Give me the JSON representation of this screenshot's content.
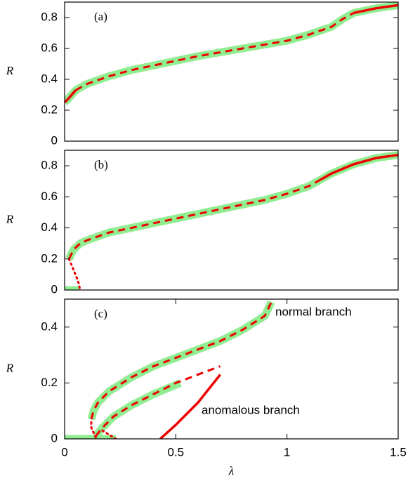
{
  "chart_data": [
    {
      "type": "line",
      "label": "(a)",
      "y_label": "R",
      "xlim": [
        0,
        1.5
      ],
      "ylim": [
        0,
        0.9
      ],
      "yticks": [
        0,
        0.2,
        0.4,
        0.6,
        0.8
      ],
      "series": [
        {
          "color": "#90ee90",
          "style": "solid",
          "width": 11,
          "x": [
            0,
            0.02,
            0.05,
            0.1,
            0.2,
            0.3,
            0.4,
            0.5,
            0.6,
            0.7,
            0.8,
            0.9,
            1.0,
            1.1,
            1.2,
            1.25,
            1.3,
            1.4,
            1.5
          ],
          "values": [
            0.25,
            0.28,
            0.33,
            0.37,
            0.42,
            0.46,
            0.49,
            0.52,
            0.55,
            0.575,
            0.6,
            0.625,
            0.65,
            0.69,
            0.74,
            0.79,
            0.83,
            0.86,
            0.88
          ]
        },
        {
          "color": "#ee0000",
          "style": "solid",
          "width": 3.5,
          "x": [
            0,
            0.02,
            0.05,
            1.25,
            1.3,
            1.4,
            1.5
          ],
          "values": [
            0.25,
            0.28,
            0.33,
            null,
            0.83,
            0.86,
            0.88
          ]
        },
        {
          "color": "#ee0000",
          "style": "dashed",
          "width": 3,
          "x": [
            0.05,
            0.1,
            0.2,
            0.3,
            0.4,
            0.5,
            0.6,
            0.7,
            0.8,
            0.9,
            1.0,
            1.1,
            1.2,
            1.25,
            1.3
          ],
          "values": [
            0.33,
            0.37,
            0.42,
            0.46,
            0.49,
            0.52,
            0.55,
            0.575,
            0.6,
            0.625,
            0.65,
            0.69,
            0.74,
            0.79,
            0.83
          ]
        }
      ]
    },
    {
      "type": "line",
      "label": "(b)",
      "y_label": "R",
      "xlim": [
        0,
        1.5
      ],
      "ylim": [
        0,
        0.9
      ],
      "yticks": [
        0,
        0.2,
        0.4,
        0.6,
        0.8
      ],
      "series": [
        {
          "color": "#90ee90",
          "style": "solid",
          "width": 11,
          "x": [
            0.02,
            0.04,
            0.07,
            0.1,
            0.2,
            0.3,
            0.4,
            0.5,
            0.6,
            0.7,
            0.8,
            0.9,
            1.0,
            1.1,
            1.2,
            1.3,
            1.4,
            1.5
          ],
          "values": [
            0.2,
            0.26,
            0.3,
            0.32,
            0.37,
            0.4,
            0.43,
            0.46,
            0.49,
            0.52,
            0.55,
            0.58,
            0.62,
            0.67,
            0.75,
            0.81,
            0.85,
            0.87
          ]
        },
        {
          "color": "#90ee90",
          "style": "solid",
          "width": 11,
          "x": [
            0,
            0.07
          ],
          "values": [
            0,
            0
          ]
        },
        {
          "color": "#ee0000",
          "style": "dashed",
          "width": 3,
          "x": [
            0.02,
            0.04,
            0.07,
            0.1,
            0.2,
            0.3,
            0.4,
            0.5,
            0.6,
            0.7,
            0.8,
            0.9,
            1.0,
            1.1,
            1.15
          ],
          "values": [
            0.2,
            0.26,
            0.3,
            0.32,
            0.37,
            0.4,
            0.43,
            0.46,
            0.49,
            0.52,
            0.55,
            0.58,
            0.62,
            0.67,
            0.71
          ]
        },
        {
          "color": "#ee0000",
          "style": "solid",
          "width": 3.5,
          "x": [
            1.15,
            1.2,
            1.3,
            1.4,
            1.5
          ],
          "values": [
            0.71,
            0.75,
            0.81,
            0.85,
            0.87
          ]
        },
        {
          "color": "#ee0000",
          "style": "dotted",
          "width": 3,
          "x": [
            0.02,
            0.04,
            0.06,
            0.07
          ],
          "values": [
            0.2,
            0.13,
            0.06,
            0
          ]
        }
      ]
    },
    {
      "type": "line",
      "label": "(c)",
      "y_label": "R",
      "x_label": "λ",
      "xlim": [
        0,
        1.5
      ],
      "ylim": [
        0,
        0.5
      ],
      "xticks": [
        0,
        0.5,
        1,
        1.5
      ],
      "yticks": [
        0,
        0.2,
        0.4
      ],
      "annotations": [
        "normal branch",
        "anomalous branch"
      ],
      "series": [
        {
          "color": "#90ee90",
          "style": "solid",
          "width": 11,
          "x": [
            0.12,
            0.13,
            0.15,
            0.2,
            0.3,
            0.4,
            0.5,
            0.6,
            0.7,
            0.8,
            0.9,
            0.93
          ],
          "values": [
            0.07,
            0.1,
            0.13,
            0.17,
            0.22,
            0.26,
            0.29,
            0.32,
            0.35,
            0.39,
            0.44,
            0.49
          ]
        },
        {
          "color": "#90ee90",
          "style": "solid",
          "width": 11,
          "x": [
            0.14,
            0.17,
            0.22,
            0.3,
            0.4,
            0.52
          ],
          "values": [
            0.01,
            0.04,
            0.08,
            0.12,
            0.16,
            0.2
          ]
        },
        {
          "color": "#90ee90",
          "style": "solid",
          "width": 11,
          "x": [
            0,
            0.23
          ],
          "values": [
            0,
            0
          ]
        },
        {
          "color": "#ee0000",
          "style": "dashed",
          "width": 3,
          "x": [
            0.12,
            0.13,
            0.15,
            0.2,
            0.3,
            0.4,
            0.5,
            0.6,
            0.7,
            0.8,
            0.9,
            0.93
          ],
          "values": [
            0.07,
            0.1,
            0.13,
            0.17,
            0.22,
            0.26,
            0.29,
            0.32,
            0.35,
            0.39,
            0.44,
            0.49
          ]
        },
        {
          "color": "#ee0000",
          "style": "dashed",
          "width": 3,
          "x": [
            0.14,
            0.17,
            0.22,
            0.3,
            0.4,
            0.5,
            0.6,
            0.7
          ],
          "values": [
            0.01,
            0.04,
            0.08,
            0.12,
            0.16,
            0.2,
            0.23,
            0.26
          ]
        },
        {
          "color": "#ee0000",
          "style": "solid",
          "width": 3.5,
          "x": [
            0.43,
            0.5,
            0.6,
            0.7
          ],
          "values": [
            0,
            0.05,
            0.13,
            0.23
          ]
        },
        {
          "color": "#ee0000",
          "style": "dotted",
          "width": 3,
          "x": [
            0.14,
            0.12,
            0.12
          ],
          "values": [
            0.005,
            0.04,
            0.07
          ]
        },
        {
          "color": "#ee0000",
          "style": "dotted",
          "width": 3,
          "x": [
            0.17,
            0.2,
            0.23
          ],
          "values": [
            0.03,
            0.015,
            0
          ]
        }
      ]
    }
  ]
}
